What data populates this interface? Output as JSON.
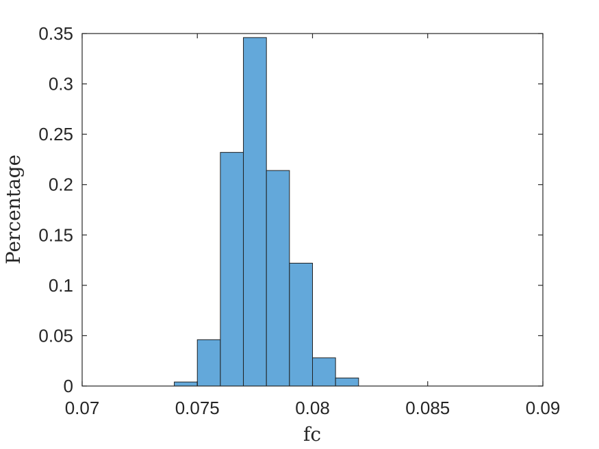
{
  "chart_data": {
    "type": "bar",
    "subtype": "histogram",
    "xlabel": "fc",
    "ylabel": "Percentage",
    "xlim": [
      0.07,
      0.09
    ],
    "ylim": [
      0,
      0.35
    ],
    "xticks": [
      "0.07",
      "0.075",
      "0.08",
      "0.085",
      "0.09"
    ],
    "yticks": [
      "0",
      "0.05",
      "0.1",
      "0.15",
      "0.2",
      "0.25",
      "0.3",
      "0.35"
    ],
    "bin_width": 0.001,
    "bins": [
      {
        "start": 0.074,
        "end": 0.075,
        "value": 0.004
      },
      {
        "start": 0.075,
        "end": 0.076,
        "value": 0.046
      },
      {
        "start": 0.076,
        "end": 0.077,
        "value": 0.232
      },
      {
        "start": 0.077,
        "end": 0.078,
        "value": 0.346
      },
      {
        "start": 0.078,
        "end": 0.079,
        "value": 0.214
      },
      {
        "start": 0.079,
        "end": 0.08,
        "value": 0.122
      },
      {
        "start": 0.08,
        "end": 0.081,
        "value": 0.028
      },
      {
        "start": 0.081,
        "end": 0.082,
        "value": 0.008
      }
    ],
    "colors": {
      "bar": "#63a8da",
      "edge": "#1f1f1f"
    },
    "grid": false,
    "box": true
  }
}
